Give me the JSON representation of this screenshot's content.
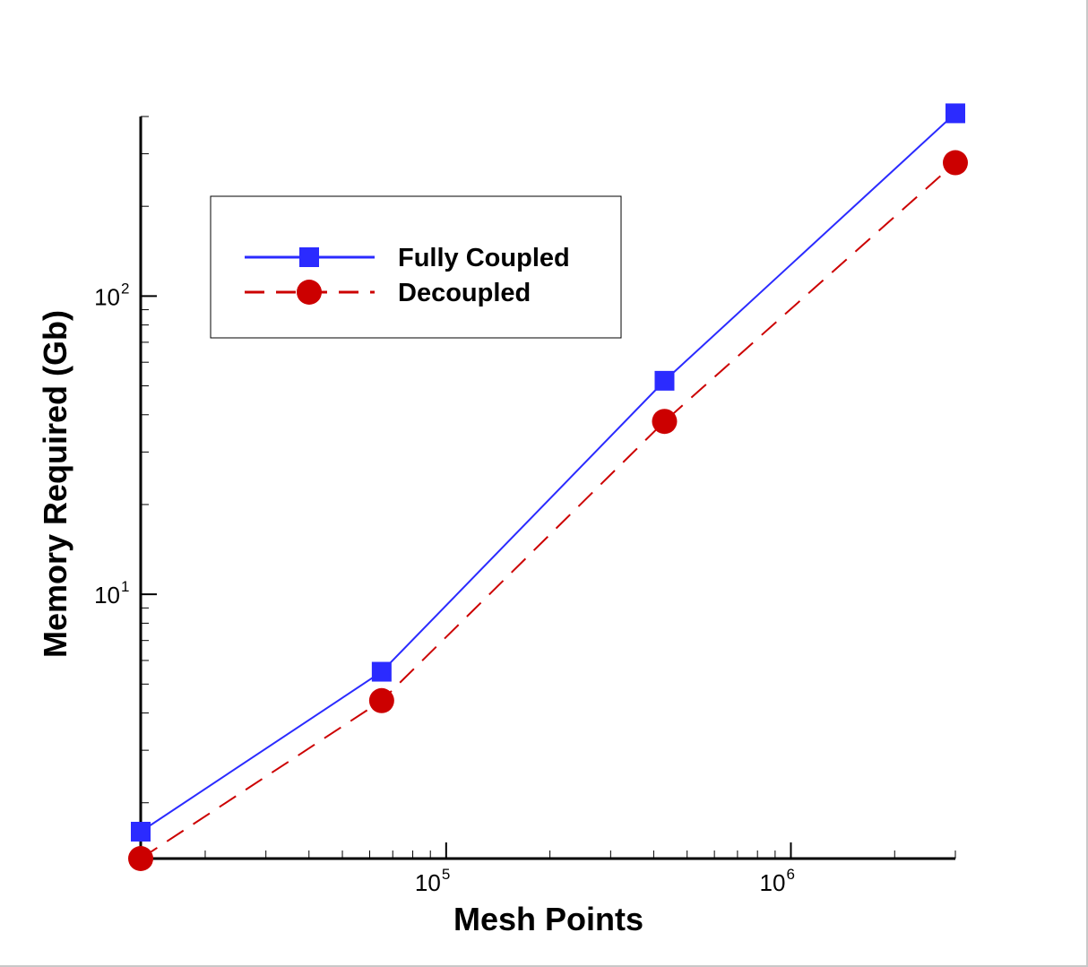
{
  "chart_data": {
    "type": "line",
    "xscale": "log",
    "yscale": "log",
    "xlabel": "Mesh Points",
    "ylabel": "Memory Required (Gb)",
    "xlim": [
      13000,
      3000000
    ],
    "ylim": [
      1.3,
      400
    ],
    "x_tick_labels": [
      {
        "value": 100000,
        "base": "10",
        "exp": "5"
      },
      {
        "value": 1000000,
        "base": "10",
        "exp": "6"
      }
    ],
    "y_tick_labels": [
      {
        "value": 10,
        "base": "10",
        "exp": "1"
      },
      {
        "value": 100,
        "base": "10",
        "exp": "2"
      }
    ],
    "grid": false,
    "legend_position": "top-left",
    "series": [
      {
        "name": "Fully Coupled",
        "color": "#2b2bff",
        "line": "solid",
        "marker": "square",
        "x": [
          13000,
          65000,
          430000,
          3000000
        ],
        "y": [
          1.6,
          5.5,
          52,
          410
        ]
      },
      {
        "name": "Decoupled",
        "color": "#cc0000",
        "line": "dashed",
        "marker": "circle",
        "x": [
          13000,
          65000,
          430000,
          3000000
        ],
        "y": [
          1.3,
          4.4,
          38,
          280
        ]
      }
    ]
  }
}
